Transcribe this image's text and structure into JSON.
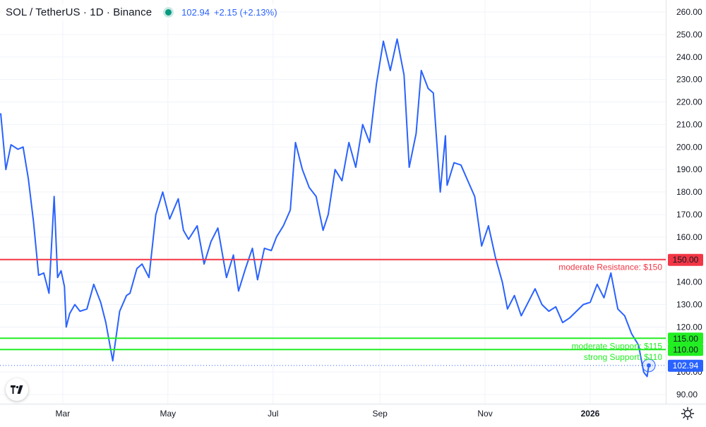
{
  "header": {
    "title": "SOL / TetherUS · 1D · Binance",
    "price": "102.94",
    "change": "+2.15 (+2.13%)",
    "status_color": "#089981"
  },
  "icons": {
    "logo": "tradingview-logo-icon",
    "settings": "gear-icon",
    "status": "market-status-dot-icon"
  },
  "colors": {
    "series": "#2962ff",
    "resistance": "#f23645",
    "support": "#22ee22",
    "last_price_label": "#2962ff",
    "grid": "#f0f3fa"
  },
  "chart_data": {
    "type": "line",
    "title": "SOL / TetherUS · 1D · Binance",
    "ylim": [
      90,
      260
    ],
    "y_ticks": [
      "260.00",
      "250.00",
      "240.00",
      "230.00",
      "220.00",
      "210.00",
      "200.00",
      "190.00",
      "180.00",
      "170.00",
      "160.00",
      "150.00",
      "140.00",
      "130.00",
      "120.00",
      "110.00",
      "100.00",
      "90.00"
    ],
    "x_ticks": [
      "Mar",
      "May",
      "Jul",
      "Sep",
      "Nov",
      "2026"
    ],
    "grid": true,
    "series": [
      {
        "color": "#2962ff",
        "x": [
          "2025-01-24",
          "2025-01-27",
          "2025-01-30",
          "2025-02-03",
          "2025-02-06",
          "2025-02-09",
          "2025-02-12",
          "2025-02-15",
          "2025-02-18",
          "2025-02-21",
          "2025-02-24",
          "2025-02-26",
          "2025-02-28",
          "2025-03-02",
          "2025-03-03",
          "2025-03-05",
          "2025-03-08",
          "2025-03-11",
          "2025-03-15",
          "2025-03-19",
          "2025-03-23",
          "2025-03-26",
          "2025-03-30",
          "2025-04-03",
          "2025-04-07",
          "2025-04-09",
          "2025-04-13",
          "2025-04-16",
          "2025-04-20",
          "2025-04-24",
          "2025-04-28",
          "2025-05-02",
          "2025-05-07",
          "2025-05-10",
          "2025-05-13",
          "2025-05-18",
          "2025-05-22",
          "2025-05-26",
          "2025-05-30",
          "2025-06-04",
          "2025-06-08",
          "2025-06-11",
          "2025-06-15",
          "2025-06-19",
          "2025-06-22",
          "2025-06-26",
          "2025-06-30",
          "2025-07-03",
          "2025-07-07",
          "2025-07-11",
          "2025-07-14",
          "2025-07-18",
          "2025-07-22",
          "2025-07-26",
          "2025-07-30",
          "2025-08-02",
          "2025-08-06",
          "2025-08-10",
          "2025-08-14",
          "2025-08-18",
          "2025-08-22",
          "2025-08-26",
          "2025-08-30",
          "2025-09-03",
          "2025-09-07",
          "2025-09-11",
          "2025-09-15",
          "2025-09-18",
          "2025-09-22",
          "2025-09-25",
          "2025-09-29",
          "2025-10-02",
          "2025-10-06",
          "2025-10-09",
          "2025-10-10",
          "2025-10-14",
          "2025-10-18",
          "2025-10-22",
          "2025-10-26",
          "2025-10-30",
          "2025-11-03",
          "2025-11-07",
          "2025-11-11",
          "2025-11-14",
          "2025-11-18",
          "2025-11-22",
          "2025-11-26",
          "2025-11-30",
          "2025-12-04",
          "2025-12-08",
          "2025-12-12",
          "2025-12-16",
          "2025-12-20",
          "2025-12-24",
          "2025-12-28",
          "2026-01-01",
          "2026-01-05",
          "2026-01-09",
          "2026-01-13",
          "2026-01-17",
          "2026-01-21",
          "2026-01-25",
          "2026-01-29",
          "2026-02-01",
          "2026-02-03",
          "2026-02-04"
        ],
        "y": [
          215,
          190,
          201,
          199,
          200,
          186,
          167,
          143,
          144,
          135,
          178,
          142,
          145,
          138,
          120,
          126,
          130,
          127,
          128,
          139,
          131,
          122,
          105,
          127,
          134,
          135,
          146,
          148,
          142,
          170,
          180,
          168,
          177,
          163,
          159,
          165,
          148,
          158,
          164,
          142,
          152,
          136,
          146,
          155,
          141,
          155,
          154,
          160,
          165,
          172,
          202,
          190,
          182,
          178,
          163,
          170,
          190,
          185,
          202,
          191,
          210,
          202,
          228,
          247,
          234,
          248,
          232,
          191,
          206,
          234,
          226,
          224,
          180,
          205,
          183,
          193,
          192,
          185,
          178,
          156,
          165,
          151,
          140,
          128,
          134,
          125,
          131,
          137,
          130,
          127,
          129,
          122,
          124,
          127,
          130,
          131,
          139,
          133,
          144,
          128,
          125,
          117,
          112,
          100,
          98,
          103
        ]
      }
    ],
    "last_value": "102.94",
    "levels": [
      {
        "label": "moderate Resistance: $150",
        "value": 150,
        "tag": "150.00",
        "color": "#f23645"
      },
      {
        "label": "moderate Support: $115",
        "value": 115,
        "tag": "115.00",
        "color": "#22ee22"
      },
      {
        "label": "strong Support: $110",
        "value": 110,
        "tag": "110.00",
        "color": "#22ee22"
      }
    ]
  }
}
